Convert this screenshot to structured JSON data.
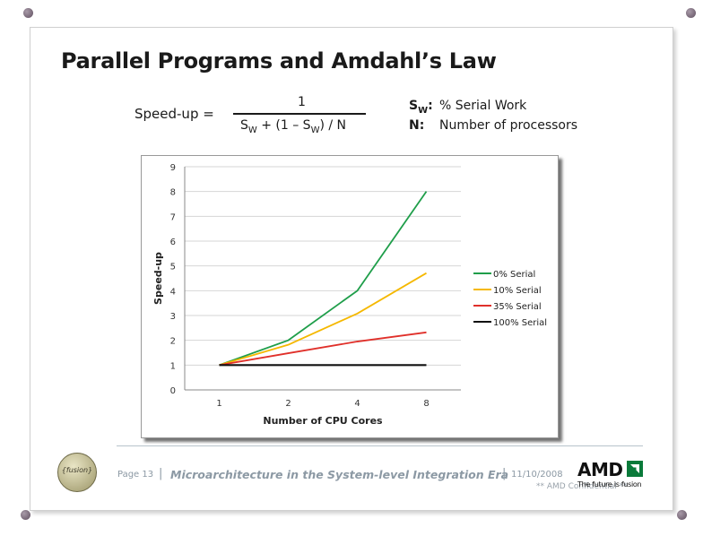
{
  "slide": {
    "title": "Parallel Programs and Amdahl’s Law"
  },
  "formula": {
    "lhs": "Speed-up =",
    "numerator": "1",
    "den_part1": "S",
    "den_sub1": "W",
    "den_part2": " + (1 – S",
    "den_sub2": "W",
    "den_part3": ") / N"
  },
  "definitions": {
    "sw_symbol": "S",
    "sw_symbol_sub": "W",
    "sw_colon": ":",
    "sw_text": "% Serial Work",
    "n_symbol": "N:",
    "n_text": "Number of processors"
  },
  "chart_data": {
    "type": "line",
    "xlabel": "Number of CPU Cores",
    "ylabel": "Speed-up",
    "categories": [
      "1",
      "2",
      "4",
      "8"
    ],
    "ylim": [
      0,
      9
    ],
    "yticks": [
      "0",
      "1",
      "2",
      "3",
      "4",
      "5",
      "6",
      "7",
      "8",
      "9"
    ],
    "grid": "horizontal",
    "legend_position": "right",
    "series": [
      {
        "name": "0% Serial",
        "color": "#1f9e4a",
        "values": [
          1,
          2,
          4,
          8
        ]
      },
      {
        "name": "10% Serial",
        "color": "#f5b800",
        "values": [
          1,
          1.82,
          3.08,
          4.71
        ]
      },
      {
        "name": "35% Serial",
        "color": "#e0302a",
        "values": [
          1,
          1.48,
          1.95,
          2.32
        ]
      },
      {
        "name": "100% Serial",
        "color": "#111111",
        "values": [
          1,
          1,
          1,
          1
        ]
      }
    ]
  },
  "footer": {
    "page": "Page 13",
    "sep": "|",
    "talk_title": "Microarchitecture in the System-level Integration Era",
    "date": "11/10/2008",
    "confidential": "** AMD Confidential **",
    "fusion_logo_text": "{fusion}",
    "amd_logo": "AMD",
    "amd_tagline": "The future is fusion"
  },
  "icons": {
    "corner_pin": "pushpin-icon",
    "amd_arrow": "amd-arrow-icon"
  }
}
